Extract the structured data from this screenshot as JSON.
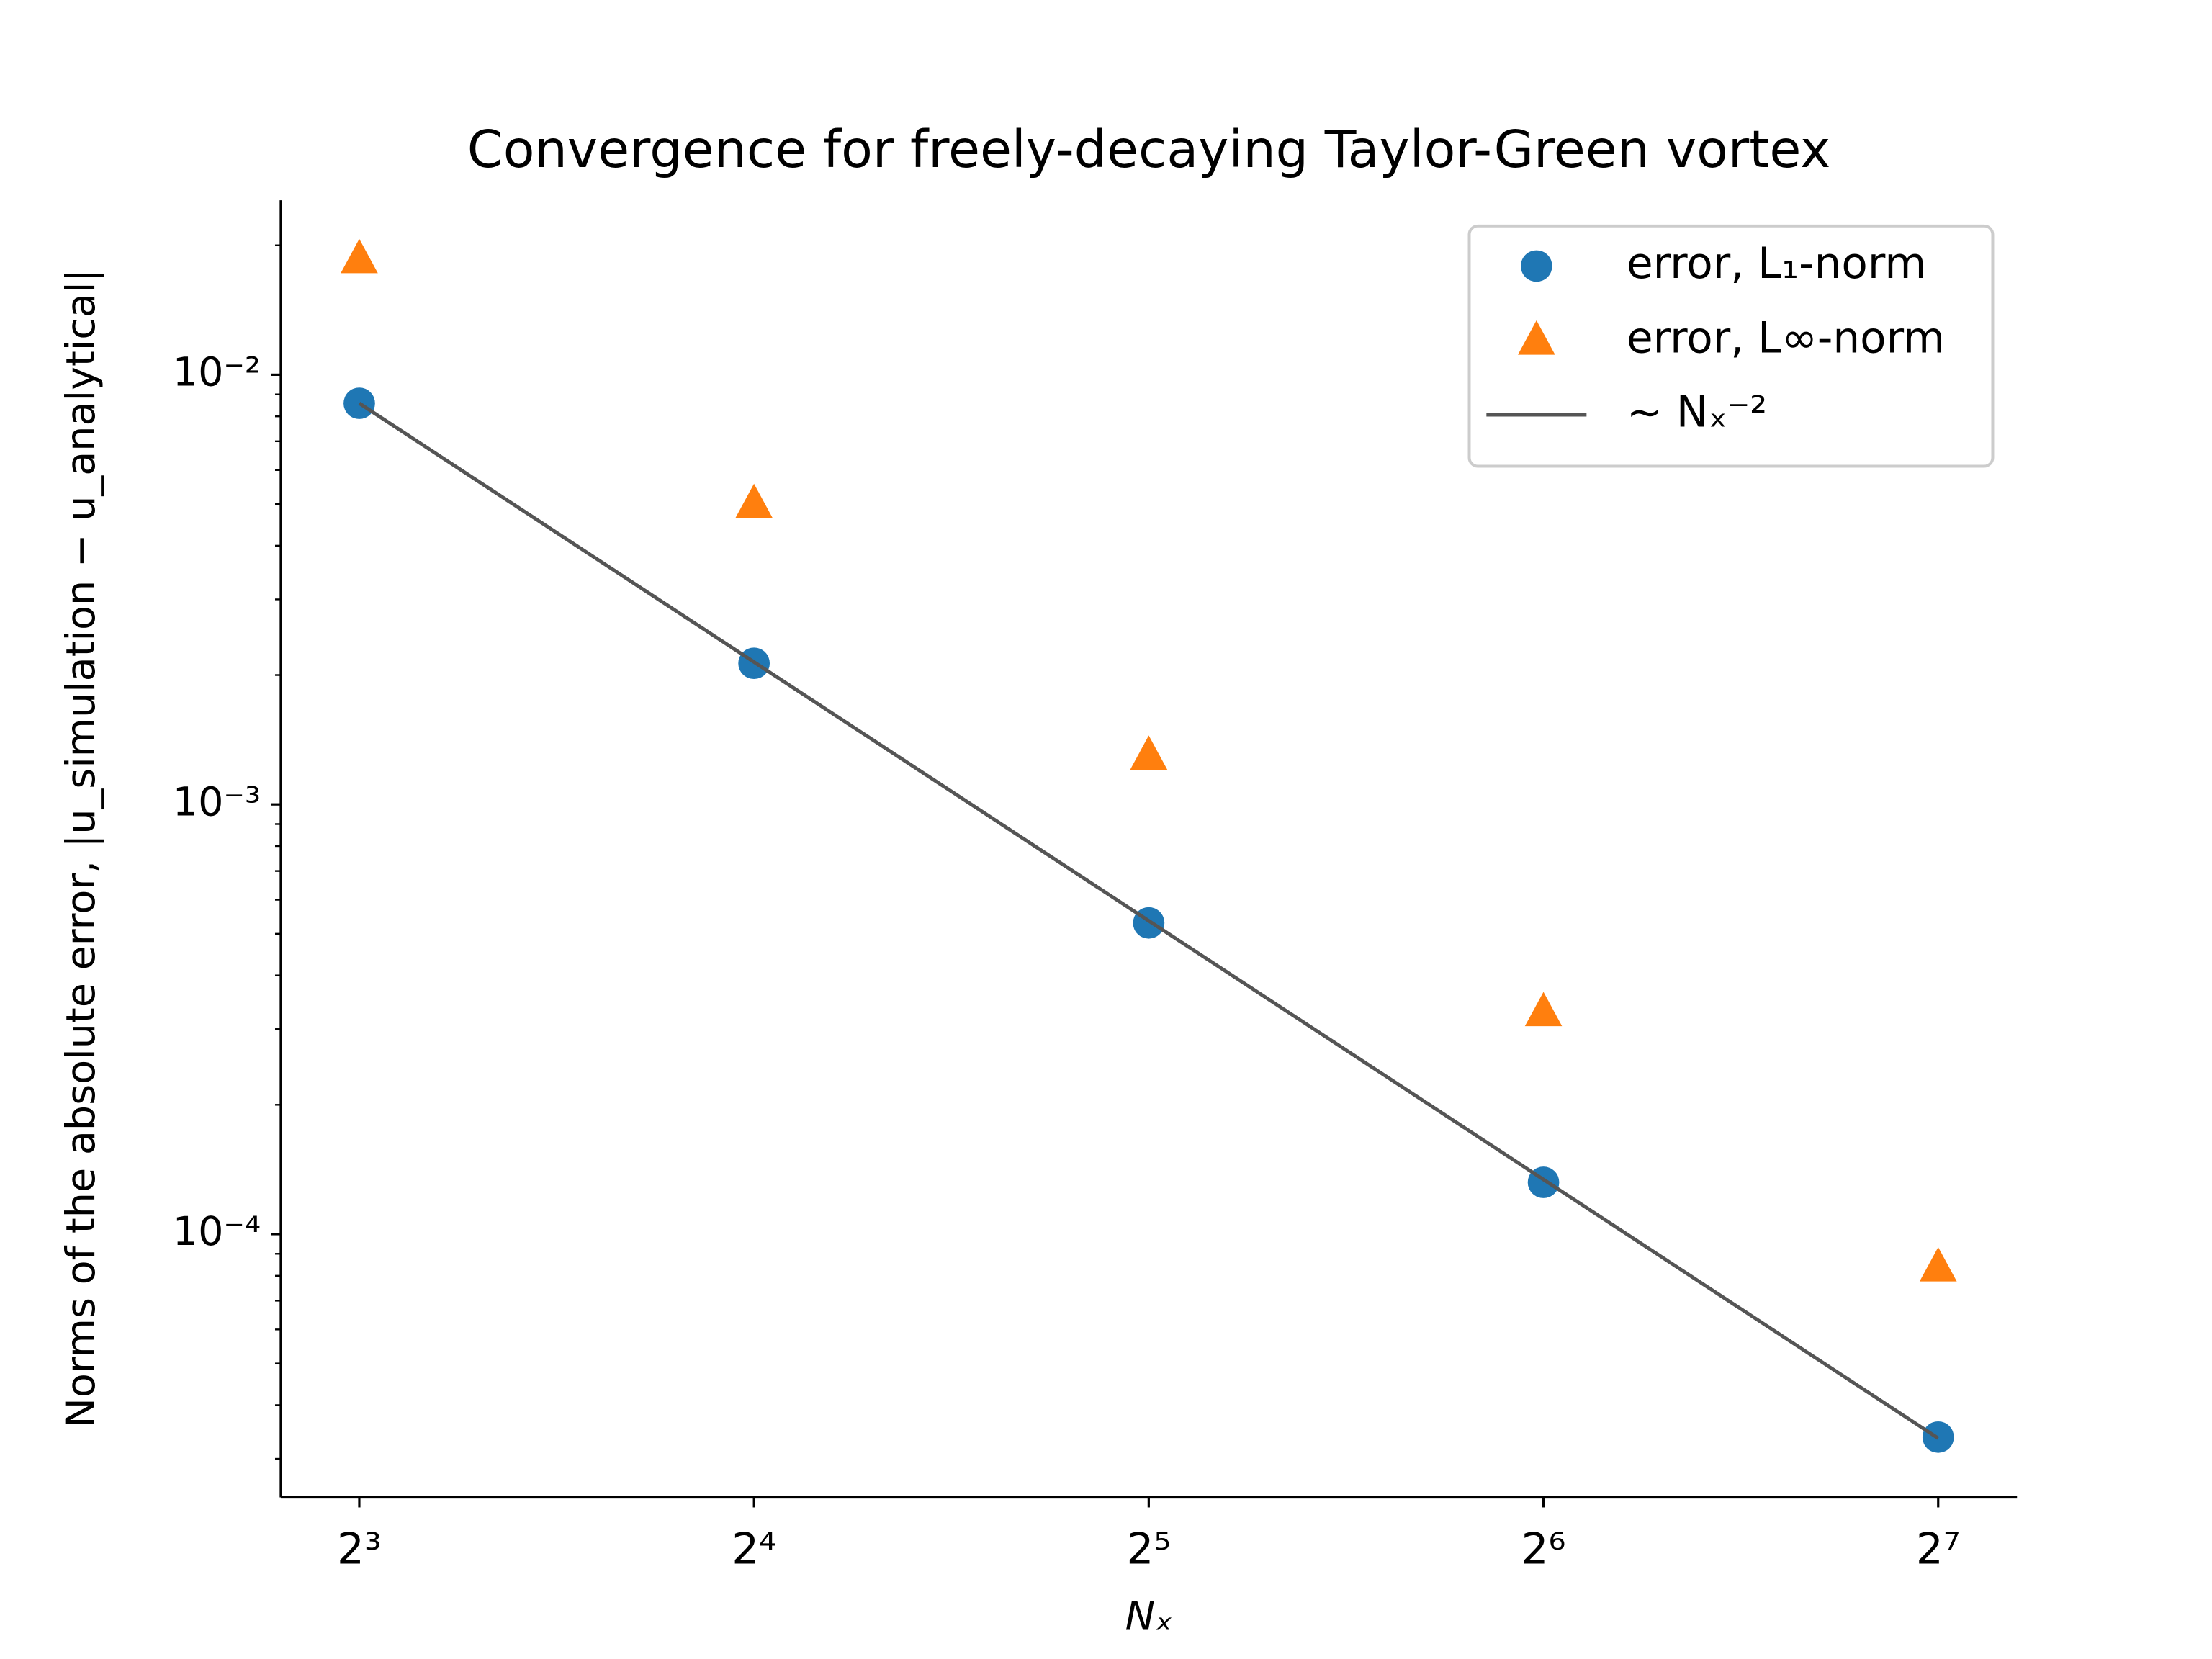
{
  "chart_data": {
    "type": "scatter",
    "title": "Convergence for freely-decaying Taylor-Green vortex",
    "x_label": "Nₓ",
    "y_label": "Norms of the absolute error, |u_simulation − u_analytical|",
    "x": [
      8,
      16,
      32,
      64,
      128
    ],
    "series": [
      {
        "name": "error, L₁-norm",
        "color": "#1f77b4",
        "marker": "circle",
        "values": [
          0.00858,
          0.00213,
          0.00053,
          0.000132,
          3.37e-05
        ]
      },
      {
        "name": "error, L∞-norm",
        "color": "#ff7f0e",
        "marker": "triangle",
        "values": [
          0.0186,
          0.00501,
          0.0013,
          0.000329,
          8.38e-05
        ]
      },
      {
        "name": "∼ Nₓ⁻²",
        "color": "#555555",
        "marker": "line",
        "x": [
          8,
          128
        ],
        "values": [
          0.00858,
          3.35e-05
        ]
      }
    ],
    "xscale": "log2",
    "yscale": "log10",
    "xlim": [
      6.97,
      147.0
    ],
    "ylim": [
      2.44e-05,
      0.02547
    ],
    "xticks": [
      {
        "value": 8,
        "label": "2³"
      },
      {
        "value": 16,
        "label": "2⁴"
      },
      {
        "value": 32,
        "label": "2⁵"
      },
      {
        "value": 64,
        "label": "2⁶"
      },
      {
        "value": 128,
        "label": "2⁷"
      }
    ],
    "yticks": [
      {
        "value": 0.0001,
        "label": "10⁻⁴"
      },
      {
        "value": 0.001,
        "label": "10⁻³"
      },
      {
        "value": 0.01,
        "label": "10⁻²"
      }
    ],
    "yminorticks": [
      3e-05,
      4e-05,
      5e-05,
      6e-05,
      7e-05,
      8e-05,
      9e-05,
      0.0002,
      0.0003,
      0.0004,
      0.0005,
      0.0006,
      0.0007,
      0.0008,
      0.0009,
      0.002,
      0.003,
      0.004,
      0.005,
      0.006,
      0.007,
      0.008,
      0.009,
      0.02
    ],
    "legend": "upper right",
    "grid": false
  }
}
